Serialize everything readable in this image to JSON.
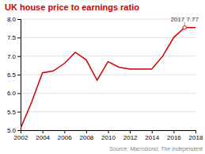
{
  "chart_data": {
    "type": "line",
    "title": "UK house price to earnings ratio",
    "source": "Source: Macrobond, The Independent",
    "annotation": {
      "text": "2017 7.77",
      "x": 2017,
      "y": 7.77
    },
    "color": "#cc0000",
    "x": [
      2002,
      2003,
      2004,
      2005,
      2006,
      2007,
      2008,
      2009,
      2010,
      2011,
      2012,
      2013,
      2014,
      2015,
      2016,
      2017,
      2018
    ],
    "values": [
      5.05,
      5.75,
      6.55,
      6.6,
      6.8,
      7.1,
      6.9,
      6.35,
      6.85,
      6.7,
      6.65,
      6.65,
      6.65,
      7.0,
      7.5,
      7.77,
      7.77
    ],
    "xlim": [
      2002,
      2018
    ],
    "ylim": [
      5.0,
      8.0
    ],
    "xticks": [
      2002,
      2004,
      2006,
      2008,
      2010,
      2012,
      2014,
      2016,
      2018
    ],
    "yticks": [
      {
        "value": 5.0,
        "label": "5.0"
      },
      5.5,
      {
        "value": 6.0,
        "label": "6.0"
      },
      6.5,
      {
        "value": 7.0,
        "label": "7.0"
      },
      7.5,
      {
        "value": 8.0,
        "label": "8.0"
      }
    ],
    "grid": true
  }
}
